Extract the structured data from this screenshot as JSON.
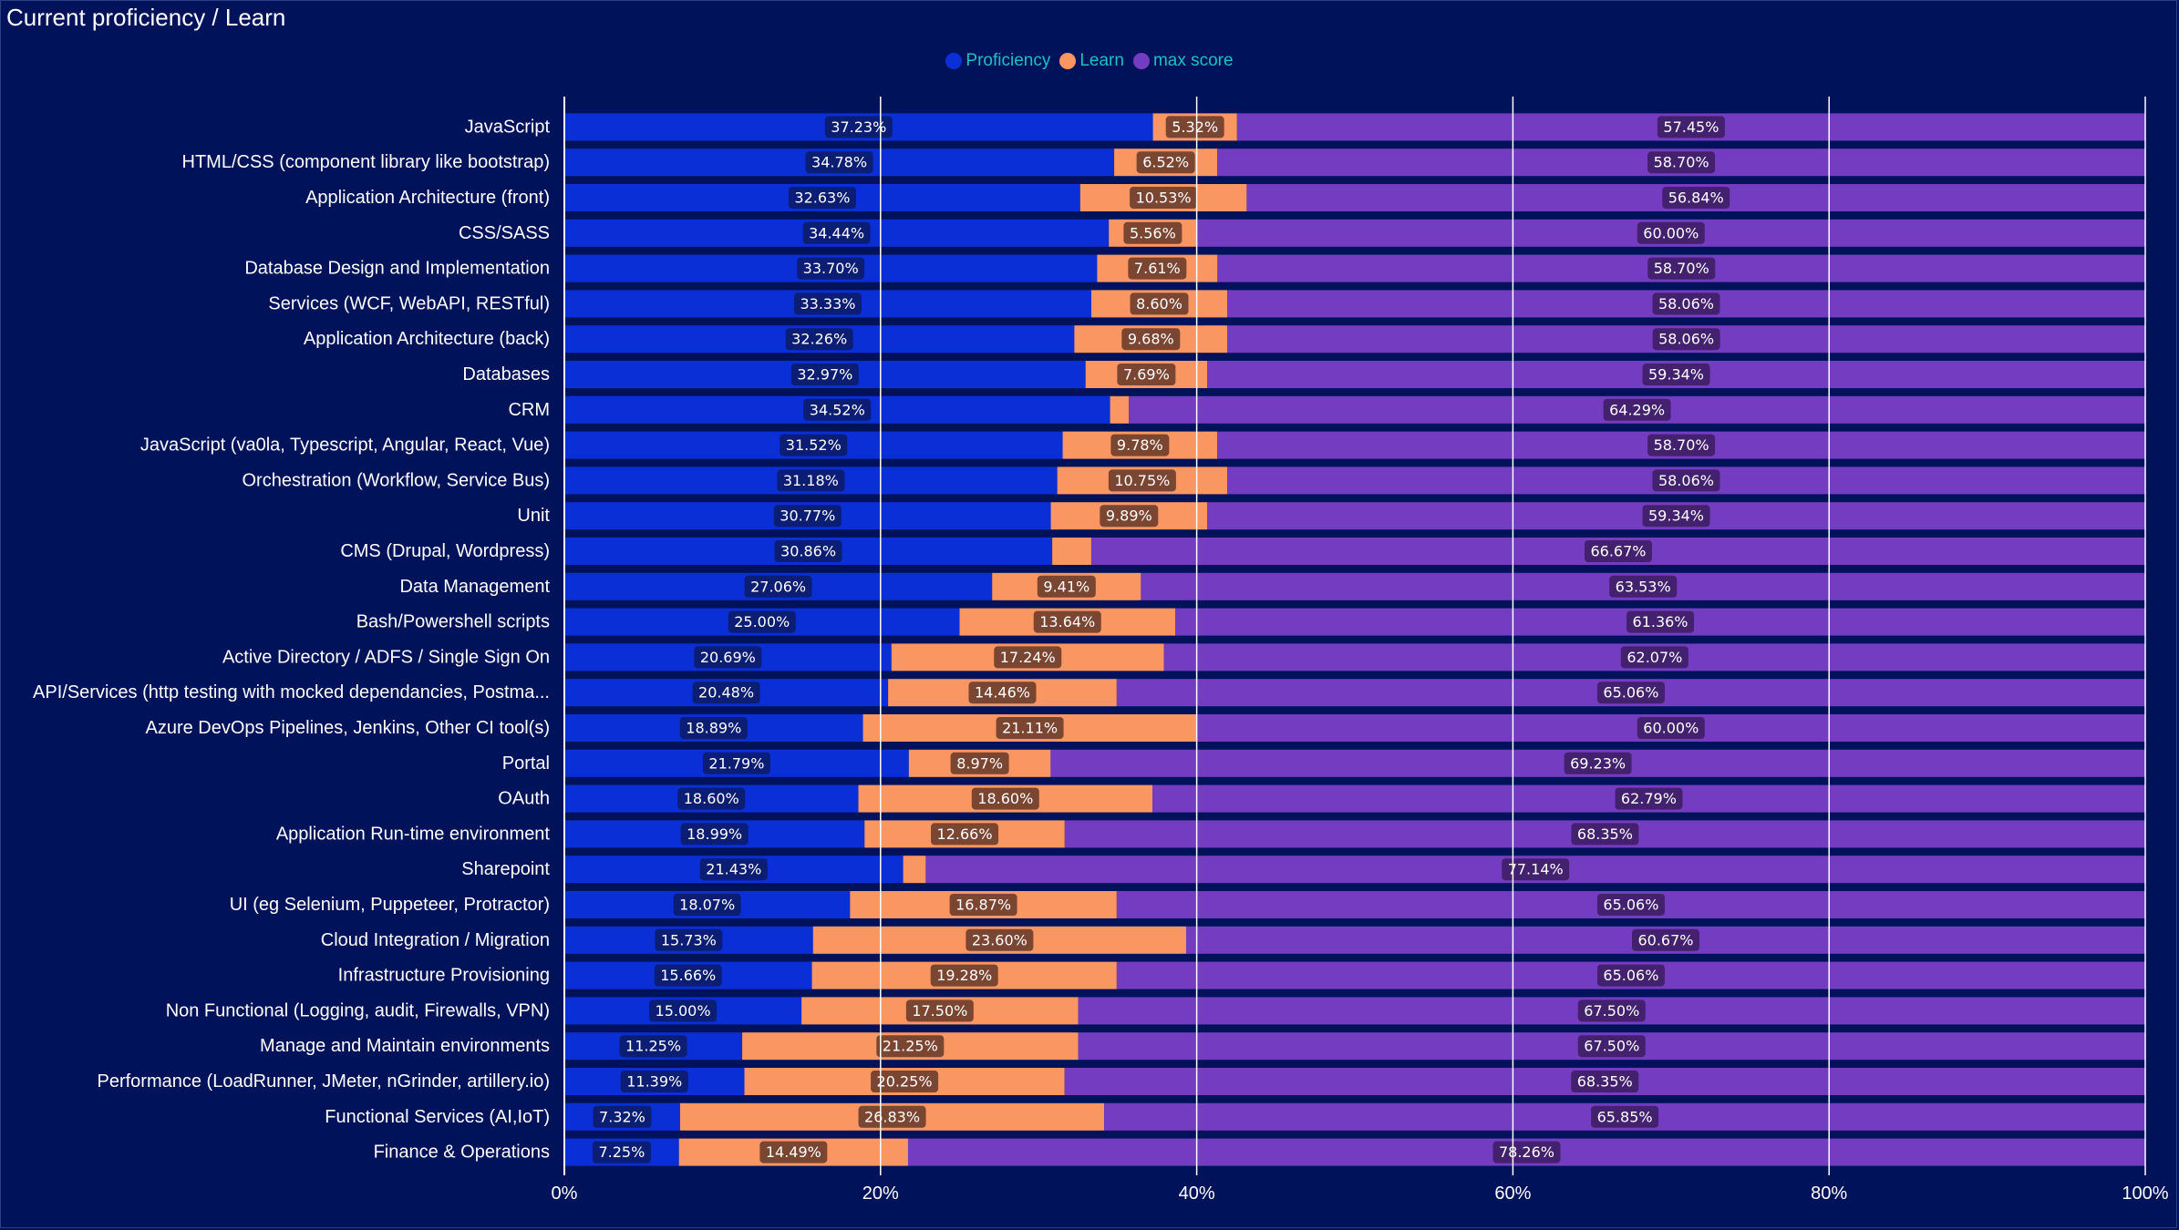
{
  "title": "Current proficiency / Learn",
  "legend": [
    {
      "name": "Proficiency",
      "color": "#0a2fd6"
    },
    {
      "name": "Learn",
      "color": "#fa9661"
    },
    {
      "name": "max score",
      "color": "#743dc1"
    }
  ],
  "chart_data": {
    "type": "bar",
    "orientation": "horizontal",
    "stacked": "100%",
    "title": "Current proficiency / Learn",
    "xlim": [
      0,
      100
    ],
    "x_ticks": [
      "0%",
      "20%",
      "40%",
      "60%",
      "80%",
      "100%"
    ],
    "grid": true,
    "legend_position": "top-center",
    "categories": [
      "JavaScript",
      "HTML/CSS (component library like bootstrap)",
      "Application Architecture (front)",
      "CSS/SASS",
      "Database Design and Implementation",
      "Services (WCF, WebAPI, RESTful)",
      "Application Architecture (back)",
      "Databases",
      "CRM",
      "JavaScript (va0la, Typescript, Angular, React, Vue)",
      "Orchestration (Workflow, Service Bus)",
      "Unit",
      "CMS (Drupal, Wordpress)",
      "Data Management",
      "Bash/Powershell scripts",
      "Active Directory / ADFS / Single Sign On",
      "API/Services (http testing with mocked dependancies, Postma...",
      "Azure DevOps Pipelines, Jenkins, Other CI tool(s)",
      "Portal",
      "OAuth",
      "Application Run-time environment",
      "Sharepoint",
      "UI (eg Selenium, Puppeteer, Protractor)",
      "Cloud Integration / Migration",
      "Infrastructure Provisioning",
      "Non Functional (Logging, audit, Firewalls, VPN)",
      "Manage and Maintain environments",
      "Performance (LoadRunner, JMeter, nGrinder, artillery.io)",
      "Functional Services (AI,IoT)",
      "Finance & Operations"
    ],
    "series": [
      {
        "name": "Proficiency",
        "color": "#0a2fd6",
        "values": [
          37.23,
          34.78,
          32.63,
          34.44,
          33.7,
          33.33,
          32.26,
          32.97,
          34.52,
          31.52,
          31.18,
          30.77,
          30.86,
          27.06,
          25.0,
          20.69,
          20.48,
          18.89,
          21.79,
          18.6,
          18.99,
          21.43,
          18.07,
          15.73,
          15.66,
          15.0,
          11.25,
          11.39,
          7.32,
          7.25
        ],
        "labels": [
          "37.23%",
          "34.78%",
          "32.63%",
          "34.44%",
          "33.70%",
          "33.33%",
          "32.26%",
          "32.97%",
          "34.52%",
          "31.52%",
          "31.18%",
          "30.77%",
          "30.86%",
          "27.06%",
          "25.00%",
          "20.69%",
          "20.48%",
          "18.89%",
          "21.79%",
          "18.60%",
          "18.99%",
          "21.43%",
          "18.07%",
          "15.73%",
          "15.66%",
          "15.00%",
          "11.25%",
          "11.39%",
          "7.32%",
          "7.25%"
        ]
      },
      {
        "name": "Learn",
        "color": "#fa9661",
        "values": [
          5.32,
          6.52,
          10.53,
          5.56,
          7.61,
          8.6,
          9.68,
          7.69,
          1.19,
          9.78,
          10.75,
          9.89,
          2.47,
          9.41,
          13.64,
          17.24,
          14.46,
          21.11,
          8.97,
          18.6,
          12.66,
          1.43,
          16.87,
          23.6,
          19.28,
          17.5,
          21.25,
          20.25,
          26.83,
          14.49
        ],
        "labels": [
          "5.32%",
          "6.52%",
          "10.53%",
          "5.56%",
          "7.61%",
          "8.60%",
          "9.68%",
          "7.69%",
          "",
          "9.78%",
          "10.75%",
          "9.89%",
          "",
          "9.41%",
          "13.64%",
          "17.24%",
          "14.46%",
          "21.11%",
          "8.97%",
          "18.60%",
          "12.66%",
          "",
          "16.87%",
          "23.60%",
          "19.28%",
          "17.50%",
          "21.25%",
          "20.25%",
          "26.83%",
          "14.49%"
        ]
      },
      {
        "name": "max score",
        "color": "#743dc1",
        "values": [
          57.45,
          58.7,
          56.84,
          60.0,
          58.7,
          58.06,
          58.06,
          59.34,
          64.29,
          58.7,
          58.06,
          59.34,
          66.67,
          63.53,
          61.36,
          62.07,
          65.06,
          60.0,
          69.23,
          62.79,
          68.35,
          77.14,
          65.06,
          60.67,
          65.06,
          67.5,
          67.5,
          68.35,
          65.85,
          78.26
        ],
        "labels": [
          "57.45%",
          "58.70%",
          "56.84%",
          "60.00%",
          "58.70%",
          "58.06%",
          "58.06%",
          "59.34%",
          "64.29%",
          "58.70%",
          "58.06%",
          "59.34%",
          "66.67%",
          "63.53%",
          "61.36%",
          "62.07%",
          "65.06%",
          "60.00%",
          "69.23%",
          "62.79%",
          "68.35%",
          "77.14%",
          "65.06%",
          "60.67%",
          "65.06%",
          "67.50%",
          "67.50%",
          "68.35%",
          "65.85%",
          "78.26%"
        ]
      }
    ]
  }
}
